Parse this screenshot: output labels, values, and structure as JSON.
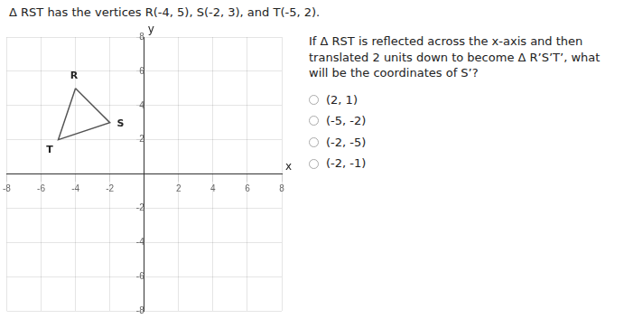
{
  "chart_data": {
    "type": "line",
    "title": "Δ RST has the vertices R(-4, 5), S(-2, 3), and T(-5, 2).",
    "subtitle": "If Δ RST is reflected across the x-axis and then translated 2 units down to become Δ R’S’T’, what will be the coordinates of S’?",
    "choices": [
      "(2, 1)",
      "(-5, -2)",
      "(-2, -5)",
      "(-2, -1)"
    ],
    "xlabel": "x",
    "ylabel": "y",
    "x": [
      -4,
      -2,
      -5,
      -4
    ],
    "values": [
      5,
      3,
      2,
      5
    ],
    "color": "#555555",
    "annotations": [
      {
        "text": "R",
        "x": -4,
        "y": 5
      },
      {
        "text": "S",
        "x": -2,
        "y": 3
      },
      {
        "text": "T",
        "x": -5,
        "y": 2
      }
    ],
    "xlim": [
      -8,
      8
    ],
    "ylim": [
      -8,
      8
    ],
    "xticks": [
      -8,
      -6,
      -4,
      -2,
      2,
      4,
      6,
      8
    ],
    "yticks": [
      -8,
      -6,
      -4,
      -2,
      2,
      4,
      6,
      8
    ],
    "grid": true
  }
}
